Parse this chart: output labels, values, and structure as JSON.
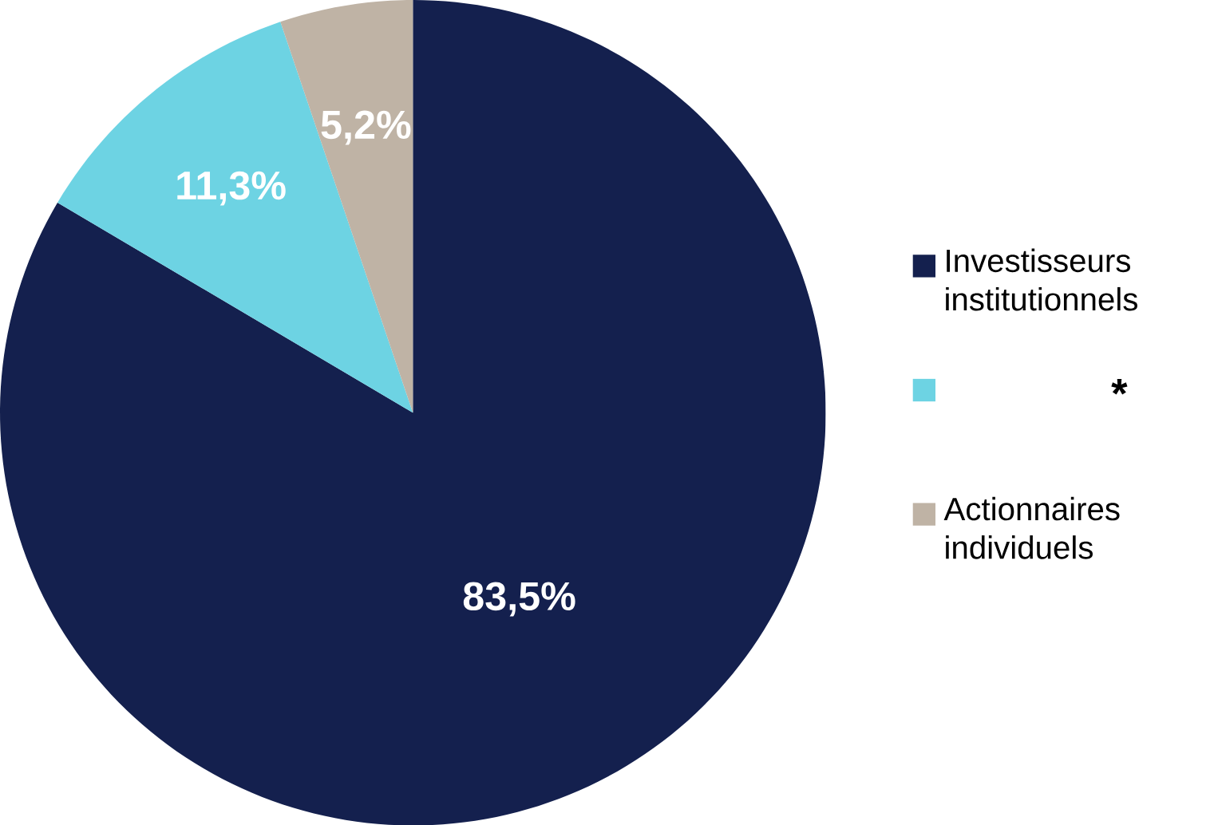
{
  "chart_data": {
    "type": "pie",
    "categories": [
      "Investisseurs institutionnels",
      null,
      "Actionnaires individuels"
    ],
    "values": [
      83.5,
      11.3,
      5.2
    ],
    "colors": [
      "#14204e",
      "#6dd3e3",
      "#bfb3a5"
    ],
    "value_labels": [
      "83,5%",
      "11,3%",
      "5,2%"
    ],
    "legend": "right",
    "annotations": [
      "*"
    ]
  }
}
